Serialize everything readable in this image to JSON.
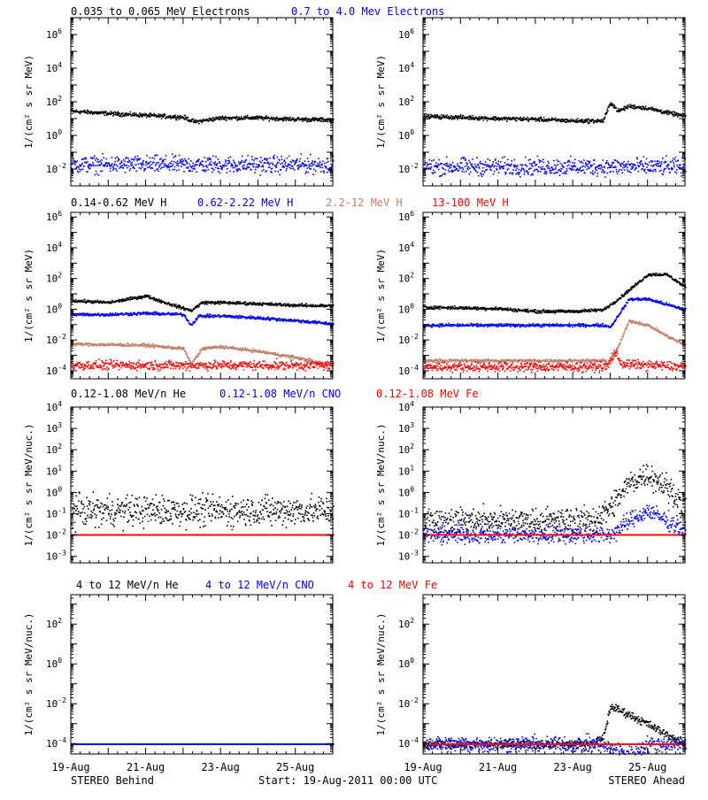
{
  "colors": {
    "black": "#000000",
    "blue": "#0000ff",
    "tan": "#c0806a",
    "red": "#ff0000"
  },
  "footer": {
    "left": "STEREO Behind",
    "center": "Start: 19-Aug-2011 00:00 UTC",
    "right": "STEREO Ahead"
  },
  "x_ticks": [
    "19-Aug",
    "21-Aug",
    "23-Aug",
    "25-Aug"
  ],
  "chart_data": [
    {
      "id": "electrons",
      "type": "scatter",
      "yscale": "log",
      "ylabel": "1/(cm² s sr MeV)",
      "ylim": [
        0.001,
        10000000
      ],
      "yticks": [
        {
          "v": 0.01,
          "base": "10",
          "exp": "-2"
        },
        {
          "v": 1,
          "base": "10",
          "exp": "0"
        },
        {
          "v": 100,
          "base": "10",
          "exp": "2"
        },
        {
          "v": 10000,
          "base": "10",
          "exp": "4"
        },
        {
          "v": 1000000,
          "base": "10",
          "exp": "6"
        }
      ],
      "legend": [
        {
          "text": "0.035 to 0.065 MeV Electrons",
          "color": "#000000"
        },
        {
          "text": "0.7 to 4.0 Mev Electrons",
          "color": "#0000ff"
        }
      ],
      "behind": {
        "series": [
          {
            "name": "0.035 to 0.065 MeV Electrons",
            "color": "#000000",
            "x": [
              0,
              1,
              2,
              3,
              3.3,
              4,
              5,
              6,
              7
            ],
            "y": [
              30,
              22,
              17,
              13,
              7,
              12,
              12,
              10,
              9
            ],
            "noise": 0.06
          },
          {
            "name": "0.7 to 4.0 Mev Electrons",
            "color": "#0000ff",
            "x": [
              0,
              7
            ],
            "y": [
              0.02,
              0.02
            ],
            "noise": 0.25
          }
        ]
      },
      "ahead": {
        "series": [
          {
            "name": "0.035 to 0.065 MeV Electrons",
            "color": "#000000",
            "x": [
              0,
              2,
              3,
              4,
              4.8,
              5.0,
              5.2,
              5.5,
              6,
              6.5,
              7
            ],
            "y": [
              15,
              11,
              10,
              8,
              8,
              100,
              30,
              60,
              45,
              25,
              15
            ],
            "noise": 0.06
          },
          {
            "name": "0.7 to 4.0 Mev Electrons",
            "color": "#0000ff",
            "x": [
              0,
              7
            ],
            "y": [
              0.015,
              0.015
            ],
            "noise": 0.25
          }
        ]
      }
    },
    {
      "id": "protons",
      "type": "scatter",
      "yscale": "log",
      "ylabel": "1/(cm² s sr MeV)",
      "ylim": [
        3e-05,
        2000000
      ],
      "yticks": [
        {
          "v": 0.0001,
          "base": "10",
          "exp": "-4"
        },
        {
          "v": 0.01,
          "base": "10",
          "exp": "-2"
        },
        {
          "v": 1,
          "base": "10",
          "exp": "0"
        },
        {
          "v": 100,
          "base": "10",
          "exp": "2"
        },
        {
          "v": 10000,
          "base": "10",
          "exp": "4"
        },
        {
          "v": 1000000,
          "base": "10",
          "exp": "6"
        }
      ],
      "legend": [
        {
          "text": "0.14-0.62 MeV H",
          "color": "#000000"
        },
        {
          "text": "0.62-2.22 MeV H",
          "color": "#0000ff"
        },
        {
          "text": "2.2-12 MeV H",
          "color": "#c0806a"
        },
        {
          "text": "13-100 MeV H",
          "color": "#ff0000"
        }
      ],
      "behind": {
        "series": [
          {
            "name": "0.14-0.62 MeV H",
            "color": "#000000",
            "x": [
              0,
              1,
              2,
              2.5,
              3.2,
              3.5,
              4,
              5,
              6,
              7
            ],
            "y": [
              4,
              3,
              8,
              3,
              0.9,
              3,
              3,
              2.5,
              2,
              1.8
            ],
            "noise": 0.05
          },
          {
            "name": "0.62-2.22 MeV H",
            "color": "#0000ff",
            "x": [
              0,
              1,
              2,
              3,
              3.2,
              3.4,
              4,
              5,
              6,
              7
            ],
            "y": [
              0.5,
              0.5,
              0.6,
              0.5,
              0.1,
              0.4,
              0.4,
              0.3,
              0.2,
              0.12
            ],
            "noise": 0.05
          },
          {
            "name": "2.2-12 MeV H",
            "color": "#c0806a",
            "x": [
              0,
              2,
              3,
              3.2,
              3.5,
              4,
              5,
              6,
              6.5,
              7
            ],
            "y": [
              0.006,
              0.005,
              0.003,
              0.0003,
              0.003,
              0.004,
              0.002,
              0.0008,
              0.0004,
              0.0003
            ],
            "noise": 0.05
          },
          {
            "name": "13-100 MeV H",
            "color": "#ff0000",
            "x": [
              0,
              7
            ],
            "y": [
              0.00025,
              0.00025
            ],
            "noise": 0.15
          }
        ]
      },
      "ahead": {
        "series": [
          {
            "name": "0.14-0.62 MeV H",
            "color": "#000000",
            "x": [
              0,
              2,
              3,
              4,
              4.8,
              5.2,
              5.5,
              6,
              6.5,
              7
            ],
            "y": [
              1.5,
              1.2,
              0.8,
              0.8,
              1,
              5,
              20,
              200,
              200,
              30
            ],
            "noise": 0.05
          },
          {
            "name": "0.62-2.22 MeV H",
            "color": "#0000ff",
            "x": [
              0,
              3,
              4.8,
              5.0,
              5.3,
              5.5,
              6,
              7
            ],
            "y": [
              0.1,
              0.1,
              0.1,
              0.08,
              1,
              5,
              5,
              1
            ],
            "noise": 0.05
          },
          {
            "name": "2.2-12 MeV H",
            "color": "#c0806a",
            "x": [
              0,
              3,
              4.8,
              5.0,
              5.5,
              6,
              6.5,
              7
            ],
            "y": [
              0.0005,
              0.0005,
              0.0005,
              0.0003,
              0.2,
              0.1,
              0.02,
              0.005
            ],
            "noise": 0.05
          },
          {
            "name": "13-100 MeV H",
            "color": "#ff0000",
            "x": [
              0,
              4.9,
              5.1,
              5.3,
              7
            ],
            "y": [
              0.0002,
              0.0002,
              0.002,
              0.0003,
              0.0002
            ],
            "noise": 0.15
          }
        ]
      }
    },
    {
      "id": "heavy-low",
      "type": "scatter",
      "yscale": "log",
      "ylabel": "1/(cm² s sr MeV/nuc.)",
      "ylim": [
        0.0005,
        10000
      ],
      "yticks": [
        {
          "v": 0.001,
          "base": "10",
          "exp": "-3"
        },
        {
          "v": 0.01,
          "base": "10",
          "exp": "-2"
        },
        {
          "v": 0.1,
          "base": "10",
          "exp": "-1"
        },
        {
          "v": 1,
          "base": "10",
          "exp": "0"
        },
        {
          "v": 10,
          "base": "10",
          "exp": "1"
        },
        {
          "v": 100,
          "base": "10",
          "exp": "2"
        },
        {
          "v": 1000,
          "base": "10",
          "exp": "3"
        },
        {
          "v": 10000,
          "base": "10",
          "exp": "4"
        }
      ],
      "legend": [
        {
          "text": "0.12-1.08 MeV/n He",
          "color": "#000000"
        },
        {
          "text": "0.12-1.08 MeV/n CNO",
          "color": "#0000ff"
        },
        {
          "text": "0.12-1.08 MeV Fe",
          "color": "#ff0000"
        }
      ],
      "behind": {
        "series": [
          {
            "name": "0.12-1.08 MeV/n He",
            "color": "#000000",
            "x": [
              0,
              7
            ],
            "y": [
              0.15,
              0.15
            ],
            "noise": 0.35
          },
          {
            "name": "0.12-1.08 MeV/n CNO",
            "color": "#0000ff",
            "x": [
              0,
              7
            ],
            "y": [
              0.011,
              0.011
            ],
            "noise": 0
          },
          {
            "name": "0.12-1.08 MeV Fe",
            "color": "#ff0000",
            "x": [
              0,
              7
            ],
            "y": [
              0.011,
              0.011
            ],
            "noise": 0
          }
        ]
      },
      "ahead": {
        "series": [
          {
            "name": "0.12-1.08 MeV/n He",
            "color": "#000000",
            "x": [
              0,
              4.5,
              5.0,
              5.5,
              6,
              6.5,
              7
            ],
            "y": [
              0.05,
              0.05,
              0.2,
              3,
              8,
              2,
              0.2
            ],
            "noise": 0.3
          },
          {
            "name": "0.12-1.08 MeV/n CNO",
            "color": "#0000ff",
            "x": [
              0,
              5,
              5.5,
              6,
              6.5,
              7
            ],
            "y": [
              0.011,
              0.011,
              0.05,
              0.15,
              0.05,
              0.02
            ],
            "noise": 0.2
          },
          {
            "name": "0.12-1.08 MeV Fe",
            "color": "#ff0000",
            "x": [
              0,
              7
            ],
            "y": [
              0.011,
              0.011
            ],
            "noise": 0
          }
        ]
      }
    },
    {
      "id": "heavy-high",
      "type": "scatter",
      "yscale": "log",
      "ylabel": "1/(cm² s sr MeV/nuc.)",
      "ylim": [
        3e-05,
        3000
      ],
      "yticks": [
        {
          "v": 0.0001,
          "base": "10",
          "exp": "-4"
        },
        {
          "v": 0.01,
          "base": "10",
          "exp": "-2"
        },
        {
          "v": 1,
          "base": "10",
          "exp": "0"
        },
        {
          "v": 100,
          "base": "10",
          "exp": "2"
        }
      ],
      "legend": [
        {
          "text": "4 to 12 MeV/n He",
          "color": "#000000"
        },
        {
          "text": "4 to 12 MeV/n CNO",
          "color": "#0000ff"
        },
        {
          "text": "4 to 12 MeV Fe",
          "color": "#ff0000"
        }
      ],
      "behind": {
        "series": [
          {
            "name": "4 to 12 MeV/n He",
            "color": "#000000",
            "x": [
              0,
              7
            ],
            "y": [
              0.0001,
              0.0001
            ],
            "noise": 0
          },
          {
            "name": "4 to 12 MeV/n CNO",
            "color": "#0000ff",
            "x": [
              0,
              7
            ],
            "y": [
              0.0001,
              0.0001
            ],
            "noise": 0
          }
        ]
      },
      "ahead": {
        "series": [
          {
            "name": "4 to 12 MeV/n He",
            "color": "#000000",
            "x": [
              0,
              4.5,
              4.8,
              5.0,
              5.5,
              6,
              6.5,
              7
            ],
            "y": [
              0.0001,
              0.0001,
              0.0002,
              0.008,
              0.003,
              0.001,
              0.0003,
              0.0001
            ],
            "noise": 0.1
          },
          {
            "name": "4 to 12 MeV/n CNO",
            "color": "#0000ff",
            "x": [
              0,
              4.7,
              5.0,
              5.5,
              6,
              7
            ],
            "y": [
              0.0001,
              0.0001,
              6e-05,
              3e-05,
              0.0001,
              0.0001
            ],
            "noise": 0.2
          },
          {
            "name": "4 to 12 MeV Fe",
            "color": "#ff0000",
            "x": [
              0,
              7
            ],
            "y": [
              0.0001,
              0.0001
            ],
            "noise": 0
          }
        ]
      }
    }
  ]
}
